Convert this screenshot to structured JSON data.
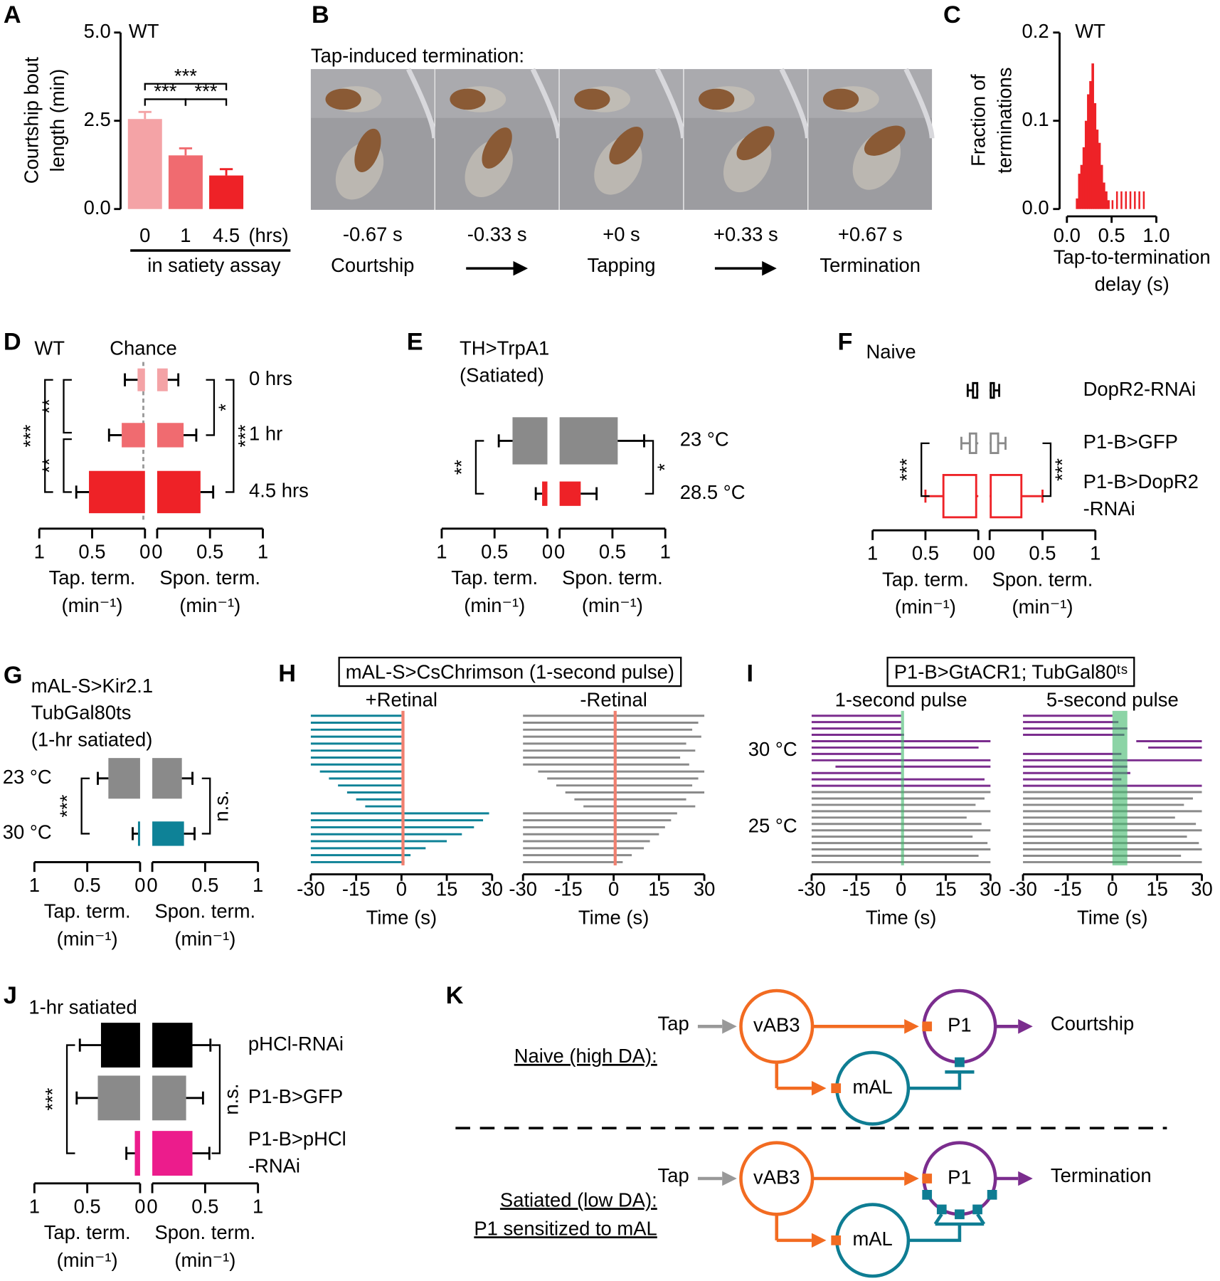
{
  "chart_data": [
    {
      "panel": "A",
      "type": "bar",
      "title": "WT",
      "y_label": [
        "Courtship bout",
        "length (min)"
      ],
      "categories": [
        "0",
        "1",
        "4.5"
      ],
      "x_unit": "(hrs)",
      "x_label": "in satiety assay",
      "values": [
        2.55,
        1.52,
        0.95
      ],
      "errors": [
        0.2,
        0.2,
        0.18
      ],
      "colors": [
        "#f4a3a6",
        "#f06b70",
        "#ee2227"
      ],
      "ylim": [
        0,
        5
      ],
      "yticks": [
        {
          "value": 0,
          "label": "0.0"
        },
        2.5,
        {
          "value": 5,
          "label": "5.0"
        }
      ],
      "significance": [
        "***",
        "***",
        "***"
      ]
    },
    {
      "panel": "C",
      "type": "histogram",
      "title": "WT",
      "y_label": [
        "Fraction of",
        "terminations"
      ],
      "x_label": [
        "Tap-to-termination",
        "delay (s)"
      ],
      "bins": [
        0.1,
        0.125,
        0.15,
        0.175,
        0.2,
        0.225,
        0.25,
        0.275,
        0.3,
        0.325,
        0.35,
        0.375,
        0.4,
        0.425,
        0.45,
        0.475,
        0.5,
        0.525,
        0.55,
        0.575,
        0.6,
        0.625,
        0.65,
        0.675,
        0.7,
        0.725,
        0.75,
        0.775,
        0.8,
        0.825,
        0.85,
        0.875,
        0.9
      ],
      "values": [
        0.012,
        0.04,
        0.05,
        0.07,
        0.1,
        0.13,
        0.145,
        0.165,
        0.12,
        0.09,
        0.075,
        0.05,
        0.03,
        0.02,
        0.01,
        0,
        0.01,
        0,
        0.02,
        0,
        0.02,
        0,
        0.02,
        0,
        0.02,
        0,
        0.02,
        0,
        0.02,
        0,
        0.02,
        0
      ],
      "color": "#ee2227",
      "xlim": [
        0,
        1
      ],
      "xticks": [
        {
          "value": 0,
          "label": "0.0"
        },
        0.5,
        {
          "value": 1,
          "label": "1.0"
        }
      ],
      "ylim": [
        0,
        0.2
      ],
      "yticks": [
        {
          "value": 0,
          "label": "0.0"
        },
        0.1,
        0.2
      ]
    },
    {
      "panel": "D",
      "type": "butterfly",
      "title": [
        "WT"
      ],
      "categories": [
        "0 hrs",
        "1 hr",
        "4.5 hrs"
      ],
      "colors": [
        "#f4a3a6",
        "#f06b70",
        "#ee2227"
      ],
      "series": [
        {
          "name": "Tap. term.",
          "unit": "(min⁻¹)",
          "values": [
            0.07,
            0.22,
            0.53
          ],
          "errors": [
            0.12,
            0.12,
            0.12
          ]
        },
        {
          "name": "Spon. term.",
          "unit": "(min⁻¹)",
          "values": [
            0.1,
            0.25,
            0.41
          ],
          "errors": [
            0.1,
            0.12,
            0.12
          ]
        }
      ],
      "xlim": [
        0,
        1
      ],
      "xticks": [
        1,
        0.5,
        0
      ],
      "chance_label": "Chance",
      "significance": [
        "**",
        "**",
        "***",
        "*",
        "***"
      ]
    },
    {
      "panel": "E",
      "type": "butterfly",
      "title": [
        "TH>TrpA1",
        "(Satiated)"
      ],
      "title_color": "#ee2227",
      "categories": [
        "23 °C",
        "28.5 °C"
      ],
      "colors": [
        "#8a8a8a",
        "#ee2227"
      ],
      "series": [
        {
          "name": "Tap. term.",
          "unit": "(min⁻¹)",
          "values": [
            0.33,
            0.05
          ],
          "errors": [
            0.13,
            0.06
          ]
        },
        {
          "name": "Spon. term.",
          "unit": "(min⁻¹)",
          "values": [
            0.55,
            0.2
          ],
          "errors": [
            0.25,
            0.15
          ]
        }
      ],
      "xlim": [
        0,
        1
      ],
      "xticks": [
        1,
        0.5,
        0
      ],
      "significance": [
        "**",
        "*"
      ]
    },
    {
      "panel": "F",
      "type": "boxplot",
      "title": [
        "Naive"
      ],
      "categories": [
        "DopR2-RNAi",
        "P1-B>GFP",
        [
          "P1-B>DopR2",
          "-RNAi"
        ]
      ],
      "colors": [
        "#000000",
        "#8a8a8a",
        "#ee2227"
      ],
      "series": [
        {
          "name": "Tap. term.",
          "unit": "(min⁻¹)",
          "values": [
            [
              0,
              0.01,
              0.05,
              0.1
            ],
            [
              0,
              0.02,
              0.08,
              0.16
            ],
            [
              0,
              0.02,
              0.33,
              0.5
            ]
          ]
        },
        {
          "name": "Spon. term.",
          "unit": "(min⁻¹)",
          "values": [
            [
              0,
              0.01,
              0.04,
              0.09
            ],
            [
              0,
              0.01,
              0.08,
              0.15
            ],
            [
              0,
              0.01,
              0.3,
              0.5
            ]
          ]
        }
      ],
      "xlim": [
        0,
        1
      ],
      "xticks": [
        1,
        0.5,
        0
      ],
      "significance": [
        "***",
        "***"
      ]
    },
    {
      "panel": "G",
      "type": "butterfly",
      "title": [
        "mAL-S>Kir2.1",
        "TubGal80ts",
        "(1-hr satiated)"
      ],
      "title_color": "#0e8297",
      "categories": [
        "23 °C",
        "30 °C"
      ],
      "colors": [
        "#8a8a8a",
        "#0e8297"
      ],
      "series": [
        {
          "name": "Tap. term.",
          "unit": "(min⁻¹)",
          "values": [
            0.3,
            0.02
          ],
          "errors": [
            0.1,
            0.05
          ]
        },
        {
          "name": "Spon. term.",
          "unit": "(min⁻¹)",
          "values": [
            0.28,
            0.3
          ],
          "errors": [
            0.1,
            0.1
          ]
        }
      ],
      "xlim": [
        0,
        1
      ],
      "xticks": [
        1,
        0.5,
        0
      ],
      "significance": [
        "***",
        "n.s."
      ]
    },
    {
      "panel": "J",
      "type": "butterfly",
      "title": [
        "1-hr satiated"
      ],
      "categories": [
        "pHCl-RNAi",
        "P1-B>GFP",
        [
          "P1-B>pHCl",
          "-RNAi"
        ]
      ],
      "colors": [
        "#000000",
        "#8a8a8a",
        "#ec1c8c"
      ],
      "series": [
        {
          "name": "Tap. term.",
          "unit": "(min⁻¹)",
          "values": [
            0.37,
            0.4,
            0.05
          ],
          "errors": [
            0.2,
            0.2,
            0.08
          ]
        },
        {
          "name": "Spon. term.",
          "unit": "(min⁻¹)",
          "values": [
            0.38,
            0.32,
            0.38
          ],
          "errors": [
            0.17,
            0.16,
            0.16
          ]
        }
      ],
      "xlim": [
        0,
        1
      ],
      "xticks": [
        1,
        0.5,
        0
      ],
      "significance": [
        "***",
        "n.s."
      ]
    },
    {
      "panel": "H",
      "type": "raster",
      "title": "mAL-S>CsChrimson (1-second pulse)",
      "xlim": [
        -30,
        30
      ],
      "xticks": [
        -30,
        -15,
        0,
        15,
        30
      ],
      "stimulus_color": "#f08070",
      "stimulus_opacity": 1,
      "plots": [
        {
          "name": "+Retinal",
          "x_label": "Time (s)",
          "stimulus": [
            0,
            1
          ],
          "series": [
            {
              "color": "#0e8297",
              "bouts": [
                [
                  -30,
                  0
                ],
                [
                  -30,
                  0
                ],
                [
                  -30,
                  0
                ],
                [
                  -30,
                  0
                ],
                [
                  -30,
                  0
                ],
                [
                  -30,
                  0
                ],
                [
                  -30,
                  0
                ],
                [
                  -30,
                  0
                ],
                [
                  -27,
                  0
                ],
                [
                  -24,
                  0
                ],
                [
                  -21,
                  0
                ],
                [
                  -18,
                  0
                ],
                [
                  -15,
                  0
                ],
                [
                  -12,
                  0
                ],
                [
                  -30,
                  29
                ],
                [
                  -30,
                  27
                ],
                [
                  -30,
                  24
                ],
                [
                  -30,
                  20
                ],
                [
                  -30,
                  15
                ],
                [
                  -30,
                  8
                ],
                [
                  -30,
                  3
                ],
                [
                  -30,
                  1
                ]
              ]
            }
          ]
        },
        {
          "name": "-Retinal",
          "x_label": "Time (s)",
          "stimulus": [
            0,
            1
          ],
          "series": [
            {
              "color": "#8a8a8a",
              "bouts": [
                [
                  -30,
                  30
                ],
                [
                  -30,
                  28
                ],
                [
                  -30,
                  26
                ],
                [
                  -30,
                  29
                ],
                [
                  -30,
                  24
                ],
                [
                  -30,
                  27
                ],
                [
                  -30,
                  22
                ],
                [
                  -30,
                  25
                ],
                [
                  -25,
                  30
                ],
                [
                  -22,
                  28
                ],
                [
                  -19,
                  26
                ],
                [
                  -16,
                  30
                ],
                [
                  -13,
                  24
                ],
                [
                  -10,
                  27
                ],
                [
                  -30,
                  21
                ],
                [
                  -30,
                  19
                ],
                [
                  -30,
                  17
                ],
                [
                  -30,
                  15
                ],
                [
                  -30,
                  12
                ],
                [
                  -30,
                  10
                ],
                [
                  -30,
                  6
                ],
                [
                  -30,
                  3
                ]
              ]
            }
          ]
        }
      ]
    },
    {
      "panel": "I",
      "type": "raster",
      "title": "P1-B>GtACR1; TubGal80ᵗˢ",
      "xlim": [
        -30,
        30
      ],
      "xticks": [
        -30,
        -15,
        0,
        15,
        30
      ],
      "stimulus_color": "#3fb86a",
      "stimulus_opacity": 0.6,
      "label_color": "#2ca05a",
      "groups": [
        {
          "name": "30 °C",
          "color": "#7b2d8e"
        },
        {
          "name": "25 °C",
          "color": "#8a8a8a"
        }
      ],
      "plots": [
        {
          "name": "1-second pulse",
          "x_label": "Time (s)",
          "stimulus": [
            0,
            1
          ],
          "series": [
            {
              "bouts": [
                [
                  -30,
                  0
                ],
                [
                  -30,
                  0
                ],
                [
                  -30,
                  0
                ],
                [
                  -30,
                  1
                ],
                [
                  -30,
                  30
                ],
                [
                  -30,
                  26
                ],
                [
                  -30,
                  0
                ],
                [
                  -30,
                  30
                ],
                [
                  -22,
                  30
                ],
                [
                  -30,
                  0
                ],
                [
                  -30,
                  28
                ],
                [
                  -30,
                  30
                ]
              ]
            },
            {
              "bouts": [
                [
                  -30,
                  30
                ],
                [
                  -30,
                  28
                ],
                [
                  -30,
                  25
                ],
                [
                  -30,
                  30
                ],
                [
                  -30,
                  22
                ],
                [
                  -30,
                  27
                ],
                [
                  -30,
                  30
                ],
                [
                  -30,
                  24
                ],
                [
                  -30,
                  29
                ],
                [
                  -30,
                  30
                ],
                [
                  -30,
                  26
                ],
                [
                  -30,
                  30
                ]
              ]
            }
          ]
        },
        {
          "name": "5-second pulse",
          "x_label": "Time (s)",
          "stimulus": [
            0,
            5
          ],
          "series": [
            {
              "bouts": [
                [
                  -30,
                  0
                ],
                [
                  -30,
                  2
                ],
                [
                  -30,
                  5
                ],
                [
                  -30,
                  4
                ],
                [
                  8,
                  30
                ],
                [
                  12,
                  30
                ],
                [
                  -30,
                  3
                ],
                [
                  -30,
                  30
                ],
                [
                  -30,
                  5
                ],
                [
                  -30,
                  6
                ],
                [
                  -30,
                  3
                ],
                [
                  -30,
                  30
                ]
              ]
            },
            {
              "bouts": [
                [
                  -30,
                  30
                ],
                [
                  -30,
                  27
                ],
                [
                  -30,
                  24
                ],
                [
                  -30,
                  30
                ],
                [
                  -30,
                  21
                ],
                [
                  -30,
                  28
                ],
                [
                  -30,
                  30
                ],
                [
                  -30,
                  25
                ],
                [
                  -30,
                  29
                ],
                [
                  -30,
                  30
                ],
                [
                  -30,
                  23
                ],
                [
                  -30,
                  30
                ]
              ]
            }
          ]
        }
      ]
    }
  ],
  "photo_panel": {
    "panel": "B",
    "caption": "Tap-induced termination:",
    "frames": [
      {
        "time": "-0.67 s",
        "label": "Courtship"
      },
      {
        "time": "-0.33 s"
      },
      {
        "time": "+0 s",
        "label": "Tapping"
      },
      {
        "time": "+0.33 s"
      },
      {
        "time": "+0.67 s",
        "label": "Termination"
      }
    ]
  },
  "diagram_panel": {
    "panel": "K",
    "rows": [
      {
        "condition": [
          "Naive (high DA):"
        ],
        "input": "Tap",
        "nodes": [
          "vAB3",
          "P1",
          "mAL"
        ],
        "output": "Courtship"
      },
      {
        "condition": [
          "Satiated (low DA):",
          "P1 sensitized to mAL"
        ],
        "input": "Tap",
        "nodes": [
          "vAB3",
          "P1",
          "mAL"
        ],
        "output": "Termination"
      }
    ]
  }
}
